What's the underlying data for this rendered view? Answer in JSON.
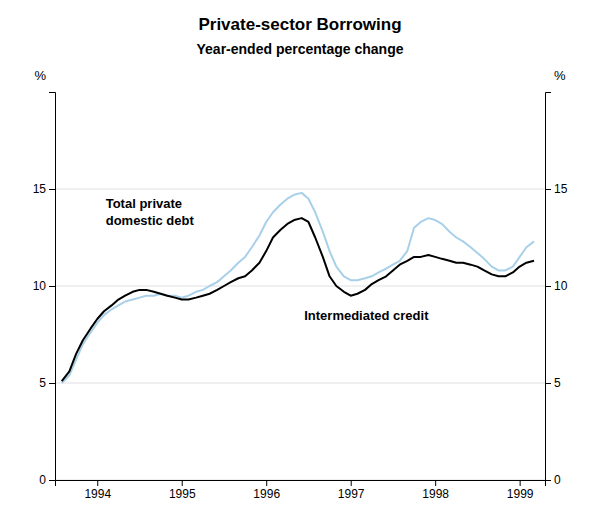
{
  "chart_data": {
    "type": "line",
    "title": "Private-sector Borrowing",
    "subtitle": "Year-ended percentage change",
    "ylabel": "%",
    "y2label": "%",
    "xlim": [
      1993.5,
      1999.3
    ],
    "xticks": [
      1994,
      1995,
      1996,
      1997,
      1998,
      1999
    ],
    "ylim": [
      0,
      20
    ],
    "yticks": [
      0,
      5,
      10,
      15
    ],
    "y2lim": [
      0,
      20
    ],
    "y2ticks": [
      0,
      5,
      10,
      15
    ],
    "grid": true,
    "x": [
      1993.58,
      1993.67,
      1993.75,
      1993.83,
      1993.92,
      1994.0,
      1994.08,
      1994.17,
      1994.25,
      1994.33,
      1994.42,
      1994.5,
      1994.58,
      1994.67,
      1994.75,
      1994.83,
      1994.92,
      1995.0,
      1995.08,
      1995.17,
      1995.25,
      1995.33,
      1995.42,
      1995.5,
      1995.58,
      1995.67,
      1995.75,
      1995.83,
      1995.92,
      1996.0,
      1996.08,
      1996.17,
      1996.25,
      1996.33,
      1996.42,
      1996.5,
      1996.58,
      1996.67,
      1996.75,
      1996.83,
      1996.92,
      1997.0,
      1997.08,
      1997.17,
      1997.25,
      1997.33,
      1997.42,
      1997.5,
      1997.58,
      1997.67,
      1997.75,
      1997.83,
      1997.92,
      1998.0,
      1998.08,
      1998.17,
      1998.25,
      1998.33,
      1998.42,
      1998.5,
      1998.58,
      1998.67,
      1998.75,
      1998.83,
      1998.92,
      1999.0,
      1999.08,
      1999.17
    ],
    "series": [
      {
        "color": "#a8d0e8",
        "values": [
          5.0,
          5.4,
          6.2,
          7.0,
          7.6,
          8.1,
          8.5,
          8.8,
          9.0,
          9.2,
          9.3,
          9.4,
          9.5,
          9.5,
          9.6,
          9.5,
          9.5,
          9.4,
          9.5,
          9.7,
          9.8,
          10.0,
          10.2,
          10.5,
          10.8,
          11.2,
          11.5,
          12.0,
          12.6,
          13.3,
          13.8,
          14.2,
          14.5,
          14.7,
          14.8,
          14.5,
          13.8,
          12.8,
          11.8,
          11.0,
          10.5,
          10.3,
          10.3,
          10.4,
          10.5,
          10.7,
          10.9,
          11.1,
          11.3,
          11.8,
          13.0,
          13.3,
          13.5,
          13.4,
          13.2,
          12.8,
          12.5,
          12.3,
          12.0,
          11.7,
          11.4,
          11.0,
          10.8,
          10.8,
          11.0,
          11.5,
          12.0,
          12.3
        ]
      },
      {
        "color": "#000000",
        "values": [
          5.1,
          5.6,
          6.5,
          7.2,
          7.8,
          8.3,
          8.7,
          9.0,
          9.3,
          9.5,
          9.7,
          9.8,
          9.8,
          9.7,
          9.6,
          9.5,
          9.4,
          9.3,
          9.3,
          9.4,
          9.5,
          9.6,
          9.8,
          10.0,
          10.2,
          10.4,
          10.5,
          10.8,
          11.2,
          11.8,
          12.5,
          12.9,
          13.2,
          13.4,
          13.5,
          13.3,
          12.5,
          11.5,
          10.5,
          10.0,
          9.7,
          9.5,
          9.6,
          9.8,
          10.1,
          10.3,
          10.5,
          10.8,
          11.1,
          11.3,
          11.5,
          11.5,
          11.6,
          11.5,
          11.4,
          11.3,
          11.2,
          11.2,
          11.1,
          11.0,
          10.8,
          10.6,
          10.5,
          10.5,
          10.7,
          11.0,
          11.2,
          11.3
        ]
      }
    ],
    "annotations": [
      {
        "text": "Total private\ndomestic debt",
        "x": 1994.1,
        "y": 13.8
      },
      {
        "text": "Intermediated credit",
        "x": 1996.45,
        "y": 8.5
      }
    ]
  }
}
